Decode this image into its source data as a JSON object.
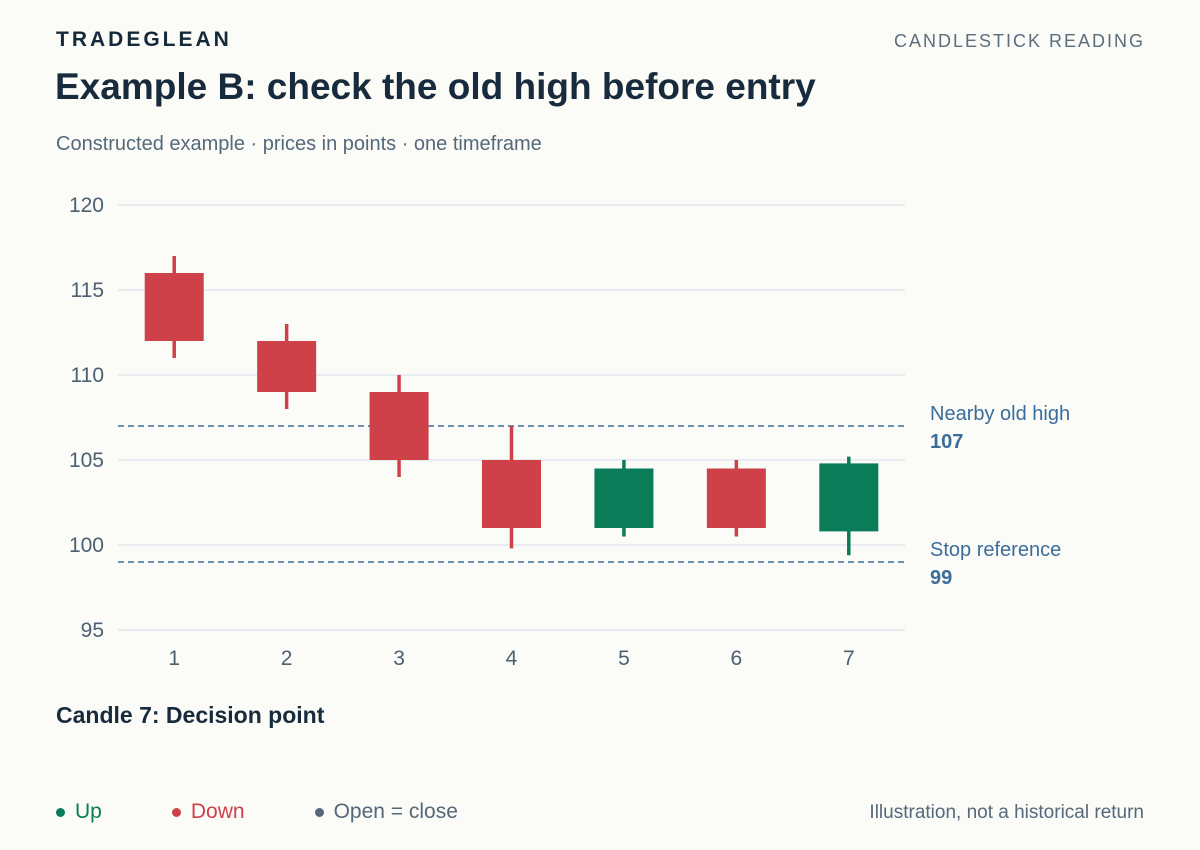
{
  "header": {
    "brand": "TRADEGLEAN",
    "section": "CANDLESTICK READING",
    "title": "Example B: check the old high before entry",
    "subtitle": "Constructed example · prices in points · one timeframe"
  },
  "chart_data": {
    "type": "candlestick",
    "title": "Example B: check the old high before entry",
    "xlabel": "",
    "ylabel": "",
    "ylim": [
      95,
      120
    ],
    "yticks": [
      95,
      100,
      105,
      110,
      115,
      120
    ],
    "grid": true,
    "categories": [
      "1",
      "2",
      "3",
      "4",
      "5",
      "6",
      "7"
    ],
    "candles": [
      {
        "x": "1",
        "open": 116,
        "high": 117,
        "low": 111,
        "close": 112,
        "direction": "down"
      },
      {
        "x": "2",
        "open": 112,
        "high": 113,
        "low": 108,
        "close": 109,
        "direction": "down"
      },
      {
        "x": "3",
        "open": 109,
        "high": 110,
        "low": 104,
        "close": 105,
        "direction": "down"
      },
      {
        "x": "4",
        "open": 105,
        "high": 107,
        "low": 99.8,
        "close": 101,
        "direction": "down"
      },
      {
        "x": "5",
        "open": 101,
        "high": 105,
        "low": 100.5,
        "close": 104.5,
        "direction": "up"
      },
      {
        "x": "6",
        "open": 104.5,
        "high": 105,
        "low": 100.5,
        "close": 101,
        "direction": "down"
      },
      {
        "x": "7",
        "open": 100.8,
        "high": 105.2,
        "low": 99.4,
        "close": 104.8,
        "direction": "up"
      }
    ],
    "reference_lines": [
      {
        "label": "Nearby old high",
        "value": 107,
        "value_label": "107"
      },
      {
        "label": "Stop reference",
        "value": 99,
        "value_label": "99"
      }
    ],
    "colors": {
      "up": "#0a7d58",
      "down": "#cf4149",
      "doji": "#556778",
      "reference": "#3a6d9a",
      "grid": "#dde3ea",
      "tick": "#4d6071"
    }
  },
  "annotation": {
    "decision": "Candle 7: Decision point"
  },
  "legend": {
    "items": [
      {
        "label": "Up",
        "color": "#0a7d58"
      },
      {
        "label": "Down",
        "color": "#cf4149"
      },
      {
        "label": "Open = close",
        "color": "#556778"
      }
    ]
  },
  "footer": {
    "note": "Illustration, not a historical return"
  }
}
